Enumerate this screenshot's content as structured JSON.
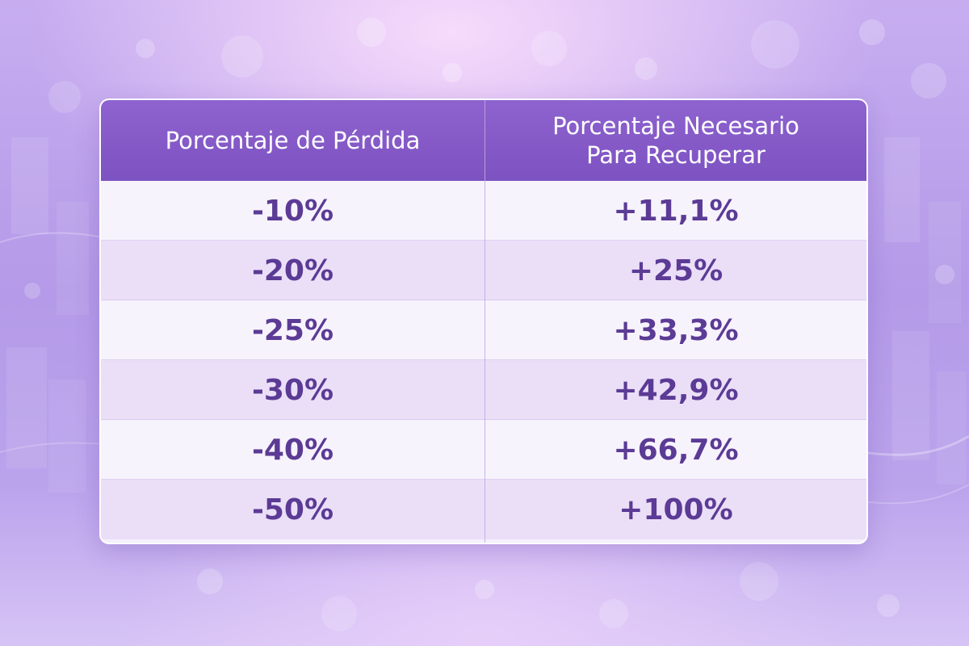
{
  "chart_data": {
    "type": "table",
    "columns": [
      "Porcentaje de Pérdida",
      "Porcentaje Necesario\nPara Recuperar"
    ],
    "rows": [
      [
        "-10%",
        "+11,1%"
      ],
      [
        "-20%",
        "+25%"
      ],
      [
        "-25%",
        "+33,3%"
      ],
      [
        "-30%",
        "+42,9%"
      ],
      [
        "-40%",
        "+66,7%"
      ],
      [
        "-50%",
        "+100%"
      ]
    ]
  },
  "colors": {
    "header_background": "#8e63cf",
    "header_text": "#ffffff",
    "cell_text": "#5b3b95",
    "row_light": "#f7f3fc",
    "row_shaded": "#ebdff8",
    "page_background": "#b49ae8"
  }
}
